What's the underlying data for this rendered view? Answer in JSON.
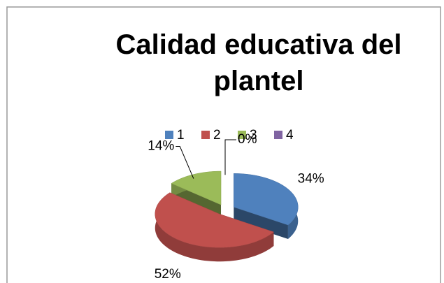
{
  "chart_data": {
    "type": "pie",
    "title": "Calidad educativa del plantel",
    "categories": [
      "1",
      "2",
      "3",
      "4"
    ],
    "values": [
      34,
      52,
      14,
      0
    ],
    "value_labels": [
      "34%",
      "52%",
      "14%",
      "0%"
    ],
    "colors": [
      "#4f81bd",
      "#c0504d",
      "#9bbb59",
      "#8064a2"
    ],
    "legend": "top",
    "three_d": true,
    "exploded": true
  }
}
